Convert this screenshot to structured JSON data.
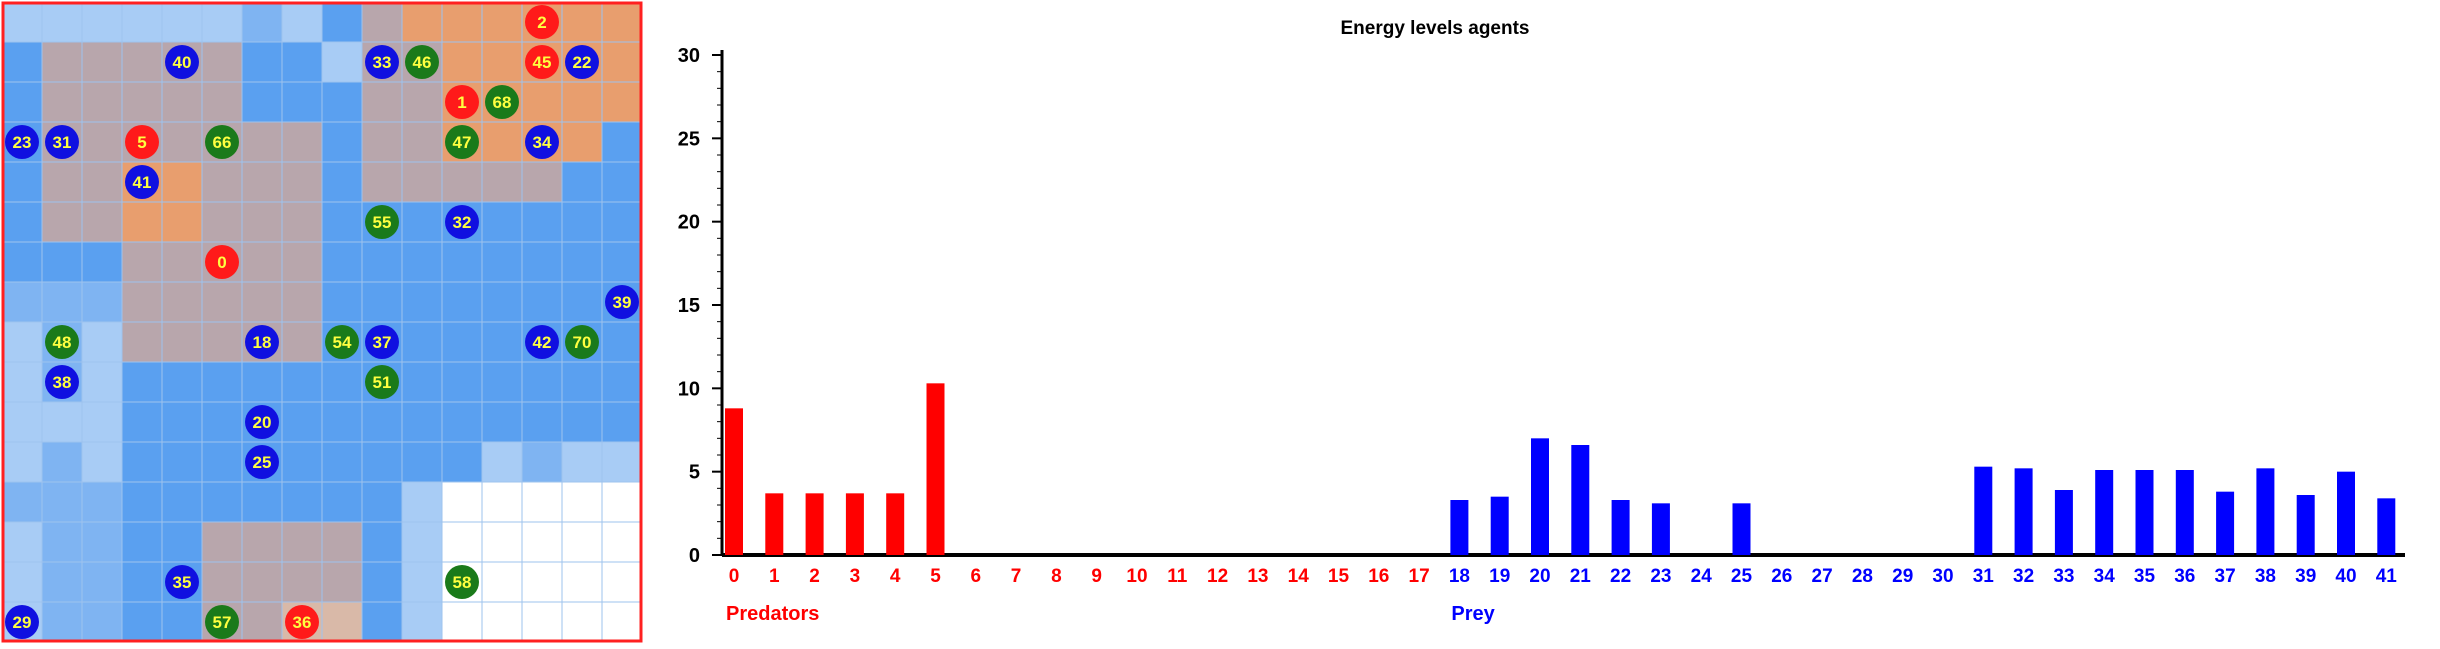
{
  "grid": {
    "cols": 16,
    "rows": 16,
    "colors": {
      "blue": "#5aa0f0",
      "light_blue": "#a8ccf5",
      "mid_blue": "#7fb4f2",
      "taupe": "#b8a6ac",
      "orange": "#e89e6e",
      "peach": "#d9b9a8",
      "white": "#ffffff",
      "grid_line": "#9ec3ee",
      "border": "#ff2020",
      "predator": "#ff1a1a",
      "prey": "#1010e0",
      "plant": "#1a7a1a",
      "label": "#ffff40"
    },
    "agents": [
      {
        "label": "2",
        "kind": "predator",
        "col": 13.5,
        "row": 0.5
      },
      {
        "label": "40",
        "kind": "prey",
        "col": 4.5,
        "row": 1.5
      },
      {
        "label": "33",
        "kind": "prey",
        "col": 9.5,
        "row": 1.5
      },
      {
        "label": "46",
        "kind": "plant",
        "col": 10.5,
        "row": 1.5
      },
      {
        "label": "45",
        "kind": "predator",
        "col": 13.5,
        "row": 1.5
      },
      {
        "label": "22",
        "kind": "prey",
        "col": 14.5,
        "row": 1.5
      },
      {
        "label": "1",
        "kind": "predator",
        "col": 11.5,
        "row": 2.5
      },
      {
        "label": "68",
        "kind": "plant",
        "col": 12.5,
        "row": 2.5
      },
      {
        "label": "23",
        "kind": "prey",
        "col": 0.5,
        "row": 3.5
      },
      {
        "label": "31",
        "kind": "prey",
        "col": 1.5,
        "row": 3.5
      },
      {
        "label": "5",
        "kind": "predator",
        "col": 3.5,
        "row": 3.5
      },
      {
        "label": "66",
        "kind": "plant",
        "col": 5.5,
        "row": 3.5
      },
      {
        "label": "47",
        "kind": "plant",
        "col": 11.5,
        "row": 3.5
      },
      {
        "label": "34",
        "kind": "prey",
        "col": 13.5,
        "row": 3.5
      },
      {
        "label": "41",
        "kind": "prey",
        "col": 3.5,
        "row": 4.5
      },
      {
        "label": "55",
        "kind": "plant",
        "col": 9.5,
        "row": 5.5
      },
      {
        "label": "32",
        "kind": "prey",
        "col": 11.5,
        "row": 5.5
      },
      {
        "label": "0",
        "kind": "predator",
        "col": 5.5,
        "row": 6.5
      },
      {
        "label": "39",
        "kind": "prey",
        "col": 15.5,
        "row": 7.5
      },
      {
        "label": "48",
        "kind": "plant",
        "col": 1.5,
        "row": 8.5
      },
      {
        "label": "18",
        "kind": "prey",
        "col": 6.5,
        "row": 8.5
      },
      {
        "label": "54",
        "kind": "plant",
        "col": 8.5,
        "row": 8.5
      },
      {
        "label": "37",
        "kind": "prey",
        "col": 9.5,
        "row": 8.5
      },
      {
        "label": "42",
        "kind": "prey",
        "col": 13.5,
        "row": 8.5
      },
      {
        "label": "70",
        "kind": "plant",
        "col": 14.5,
        "row": 8.5
      },
      {
        "label": "38",
        "kind": "prey",
        "col": 1.5,
        "row": 9.5
      },
      {
        "label": "51",
        "kind": "plant",
        "col": 9.5,
        "row": 9.5
      },
      {
        "label": "20",
        "kind": "prey",
        "col": 6.5,
        "row": 10.5
      },
      {
        "label": "25",
        "kind": "prey",
        "col": 6.5,
        "row": 11.5
      },
      {
        "label": "35",
        "kind": "prey",
        "col": 4.5,
        "row": 14.5
      },
      {
        "label": "58",
        "kind": "plant",
        "col": 11.5,
        "row": 14.5
      },
      {
        "label": "29",
        "kind": "prey",
        "col": 0.5,
        "row": 15.5
      },
      {
        "label": "57",
        "kind": "plant",
        "col": 5.5,
        "row": 15.5
      },
      {
        "label": "36",
        "kind": "predator",
        "col": 7.5,
        "row": 15.5
      }
    ]
  },
  "chart_data": {
    "type": "bar",
    "title": "Energy levels agents",
    "xlabel": "",
    "ylabel": "",
    "ylim": [
      0,
      30
    ],
    "yticks": [
      "0",
      "5",
      "10",
      "15",
      "20",
      "25",
      "30"
    ],
    "grid": false,
    "categories": [
      "0",
      "1",
      "2",
      "3",
      "4",
      "5",
      "6",
      "7",
      "8",
      "9",
      "10",
      "11",
      "12",
      "13",
      "14",
      "15",
      "16",
      "17",
      "18",
      "19",
      "20",
      "21",
      "22",
      "23",
      "24",
      "25",
      "26",
      "27",
      "28",
      "29",
      "30",
      "31",
      "32",
      "33",
      "34",
      "35",
      "36",
      "37",
      "38",
      "39",
      "40",
      "41"
    ],
    "groups": [
      {
        "name": "Predators",
        "color": "#ff0000",
        "from": 0,
        "to": 17
      },
      {
        "name": "Prey",
        "color": "#0000ff",
        "from": 18,
        "to": 41
      }
    ],
    "values": [
      8.8,
      3.7,
      3.7,
      3.7,
      3.7,
      10.3,
      0,
      0,
      0,
      0,
      0,
      0,
      0,
      0,
      0,
      0,
      0,
      0,
      3.3,
      3.5,
      7.0,
      6.6,
      3.3,
      3.1,
      0,
      3.1,
      0,
      0,
      0,
      0,
      0,
      5.3,
      5.2,
      3.9,
      5.1,
      5.1,
      5.1,
      3.8,
      5.2,
      3.6,
      5.0,
      3.4
    ]
  }
}
